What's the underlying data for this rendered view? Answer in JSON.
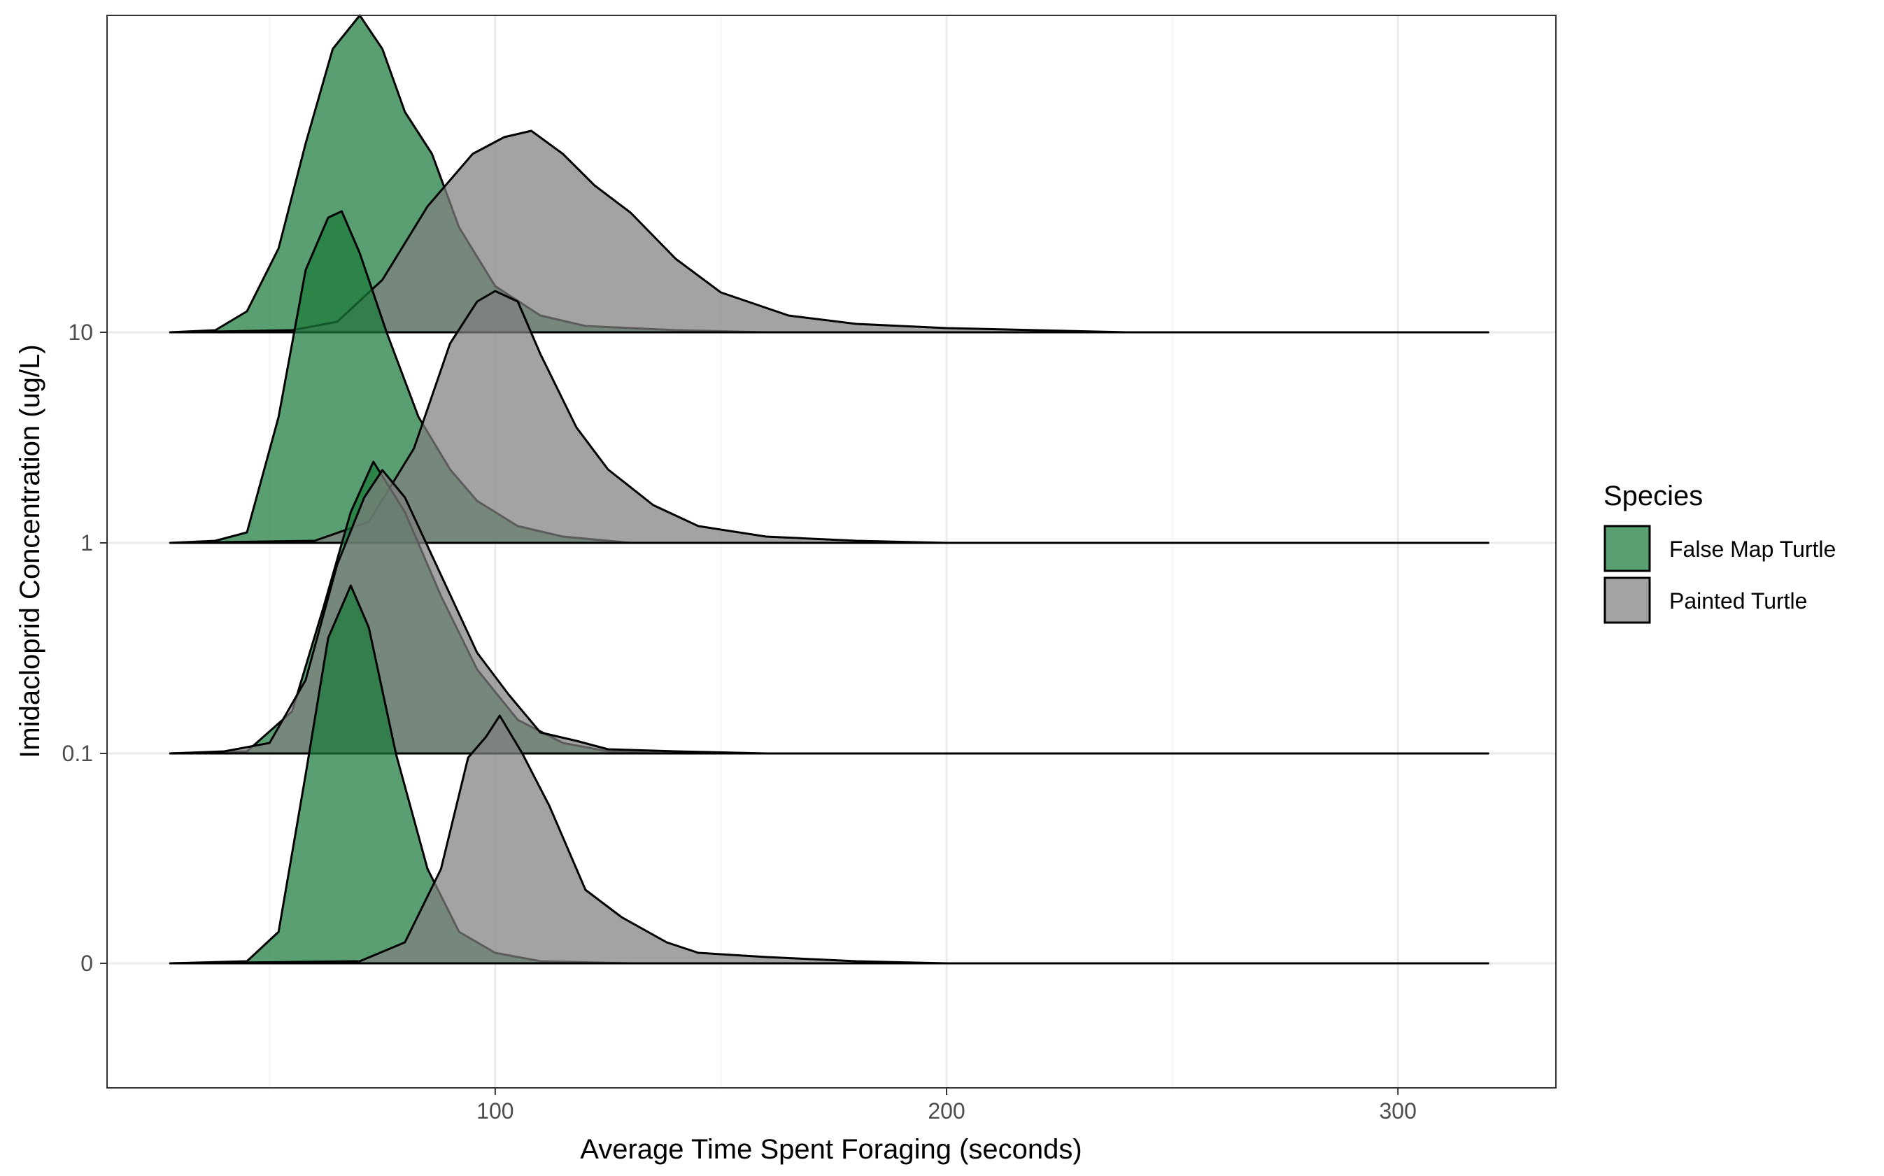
{
  "chart_data": {
    "type": "ridgeline",
    "xlabel": "Average Time Spent Foraging (seconds)",
    "ylabel": "Imidacloprid Concentration (ug/L)",
    "xlim": [
      14,
      335
    ],
    "x_range_data": [
      28,
      320
    ],
    "x_ticks": [
      100,
      200,
      300
    ],
    "y_categories": [
      "0",
      "0.1",
      "1",
      "10"
    ],
    "grid": true,
    "legend": {
      "title": "Species",
      "position": "right",
      "entries": [
        {
          "label": "False Map Turtle",
          "color": "#1a7a3a"
        },
        {
          "label": "Painted Turtle",
          "color": "#808080"
        }
      ]
    },
    "series": [
      {
        "name": "False Map Turtle",
        "color": "#1a7a3a",
        "ridges": [
          {
            "category": "0",
            "peak_x": 68,
            "peak_height": 1.8,
            "points": [
              [
                28,
                0
              ],
              [
                45,
                0.01
              ],
              [
                52,
                0.15
              ],
              [
                58,
                0.9
              ],
              [
                63,
                1.55
              ],
              [
                68,
                1.8
              ],
              [
                72,
                1.6
              ],
              [
                78,
                1.0
              ],
              [
                85,
                0.45
              ],
              [
                92,
                0.15
              ],
              [
                100,
                0.05
              ],
              [
                110,
                0.01
              ],
              [
                130,
                0
              ],
              [
                320,
                0
              ]
            ]
          },
          {
            "category": "0.1",
            "peak_x": 73,
            "peak_height": 1.39,
            "points": [
              [
                28,
                0
              ],
              [
                45,
                0.01
              ],
              [
                55,
                0.2
              ],
              [
                62,
                0.7
              ],
              [
                68,
                1.15
              ],
              [
                73,
                1.39
              ],
              [
                80,
                1.15
              ],
              [
                88,
                0.75
              ],
              [
                96,
                0.4
              ],
              [
                105,
                0.16
              ],
              [
                115,
                0.05
              ],
              [
                125,
                0.01
              ],
              [
                140,
                0
              ],
              [
                320,
                0
              ]
            ]
          },
          {
            "category": "1",
            "peak_x": 65,
            "peak_height": 1.58,
            "points": [
              [
                28,
                0
              ],
              [
                38,
                0.01
              ],
              [
                45,
                0.05
              ],
              [
                52,
                0.6
              ],
              [
                58,
                1.3
              ],
              [
                63,
                1.55
              ],
              [
                66,
                1.58
              ],
              [
                70,
                1.38
              ],
              [
                76,
                1.0
              ],
              [
                83,
                0.6
              ],
              [
                90,
                0.35
              ],
              [
                96,
                0.2
              ],
              [
                105,
                0.08
              ],
              [
                115,
                0.03
              ],
              [
                130,
                0
              ],
              [
                320,
                0
              ]
            ]
          },
          {
            "category": "10",
            "peak_x": 70,
            "peak_height": 1.51,
            "points": [
              [
                28,
                0
              ],
              [
                38,
                0.01
              ],
              [
                45,
                0.1
              ],
              [
                52,
                0.4
              ],
              [
                58,
                0.9
              ],
              [
                64,
                1.35
              ],
              [
                70,
                1.51
              ],
              [
                75,
                1.35
              ],
              [
                80,
                1.05
              ],
              [
                86,
                0.85
              ],
              [
                92,
                0.5
              ],
              [
                100,
                0.22
              ],
              [
                110,
                0.08
              ],
              [
                120,
                0.03
              ],
              [
                140,
                0.01
              ],
              [
                160,
                0
              ],
              [
                320,
                0
              ]
            ]
          }
        ]
      },
      {
        "name": "Painted Turtle",
        "color": "#808080",
        "ridges": [
          {
            "category": "0",
            "peak_x": 100,
            "peak_height": 1.18,
            "points": [
              [
                28,
                0
              ],
              [
                70,
                0.01
              ],
              [
                80,
                0.1
              ],
              [
                88,
                0.45
              ],
              [
                94,
                0.98
              ],
              [
                98,
                1.08
              ],
              [
                101,
                1.18
              ],
              [
                106,
                1.0
              ],
              [
                112,
                0.75
              ],
              [
                120,
                0.35
              ],
              [
                128,
                0.22
              ],
              [
                138,
                0.1
              ],
              [
                145,
                0.05
              ],
              [
                160,
                0.03
              ],
              [
                180,
                0.01
              ],
              [
                200,
                0
              ],
              [
                320,
                0
              ]
            ]
          },
          {
            "category": "0.1",
            "peak_x": 75,
            "peak_height": 1.35,
            "points": [
              [
                28,
                0
              ],
              [
                40,
                0.01
              ],
              [
                50,
                0.05
              ],
              [
                58,
                0.35
              ],
              [
                65,
                0.9
              ],
              [
                71,
                1.22
              ],
              [
                75,
                1.35
              ],
              [
                80,
                1.22
              ],
              [
                88,
                0.85
              ],
              [
                96,
                0.48
              ],
              [
                103,
                0.28
              ],
              [
                110,
                0.1
              ],
              [
                118,
                0.06
              ],
              [
                125,
                0.02
              ],
              [
                140,
                0.01
              ],
              [
                160,
                0
              ],
              [
                320,
                0
              ]
            ]
          },
          {
            "category": "1",
            "peak_x": 100,
            "peak_height": 1.2,
            "points": [
              [
                28,
                0
              ],
              [
                60,
                0.01
              ],
              [
                72,
                0.1
              ],
              [
                82,
                0.45
              ],
              [
                90,
                0.95
              ],
              [
                96,
                1.15
              ],
              [
                100,
                1.2
              ],
              [
                105,
                1.15
              ],
              [
                110,
                0.9
              ],
              [
                118,
                0.55
              ],
              [
                125,
                0.35
              ],
              [
                135,
                0.18
              ],
              [
                145,
                0.08
              ],
              [
                160,
                0.03
              ],
              [
                180,
                0.01
              ],
              [
                200,
                0
              ],
              [
                320,
                0
              ]
            ]
          },
          {
            "category": "10",
            "peak_x": 108,
            "peak_height": 0.96,
            "points": [
              [
                28,
                0
              ],
              [
                55,
                0.01
              ],
              [
                65,
                0.05
              ],
              [
                75,
                0.25
              ],
              [
                85,
                0.6
              ],
              [
                95,
                0.85
              ],
              [
                102,
                0.93
              ],
              [
                108,
                0.96
              ],
              [
                115,
                0.85
              ],
              [
                122,
                0.7
              ],
              [
                130,
                0.57
              ],
              [
                140,
                0.35
              ],
              [
                150,
                0.19
              ],
              [
                165,
                0.08
              ],
              [
                180,
                0.04
              ],
              [
                200,
                0.02
              ],
              [
                220,
                0.01
              ],
              [
                240,
                0
              ],
              [
                320,
                0
              ]
            ]
          }
        ]
      }
    ]
  }
}
